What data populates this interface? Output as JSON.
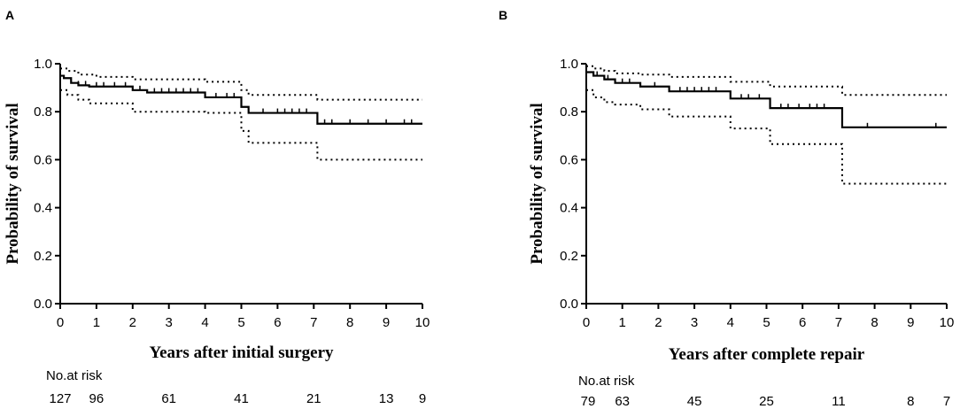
{
  "chart_data": [
    {
      "type": "line",
      "panel_label": "A",
      "title": "",
      "xlabel": "Years after initial surgery",
      "ylabel": "Probability of survival",
      "xlim": [
        0,
        10
      ],
      "ylim": [
        0,
        1.0
      ],
      "x_ticks": [
        "0",
        "1",
        "2",
        "3",
        "4",
        "5",
        "6",
        "7",
        "8",
        "9",
        "10"
      ],
      "y_ticks": [
        "0.0",
        "0.2",
        "0.4",
        "0.6",
        "0.8",
        "1.0"
      ],
      "grid": false,
      "series": [
        {
          "name": "Survival estimate",
          "style": "solid",
          "x": [
            0,
            0.1,
            0.3,
            0.5,
            0.8,
            1.3,
            2.0,
            2.4,
            4.0,
            5.0,
            5.2,
            7.1,
            10
          ],
          "y": [
            0.95,
            0.94,
            0.92,
            0.91,
            0.905,
            0.905,
            0.89,
            0.88,
            0.86,
            0.82,
            0.795,
            0.75,
            0.75
          ]
        },
        {
          "name": "Upper 95% CI",
          "style": "dotted",
          "x": [
            0,
            0.2,
            0.5,
            1.0,
            2.0,
            4.0,
            5.0,
            5.2,
            7.1,
            10
          ],
          "y": [
            0.98,
            0.97,
            0.955,
            0.945,
            0.935,
            0.925,
            0.89,
            0.87,
            0.85,
            0.85
          ]
        },
        {
          "name": "Lower 95% CI",
          "style": "dotted",
          "x": [
            0,
            0.2,
            0.5,
            0.8,
            2.0,
            4.0,
            5.0,
            5.2,
            7.1,
            10
          ],
          "y": [
            0.89,
            0.87,
            0.85,
            0.835,
            0.8,
            0.795,
            0.72,
            0.67,
            0.6,
            0.6
          ]
        }
      ],
      "censor_marks": [
        0.3,
        0.5,
        0.7,
        1.0,
        1.2,
        1.5,
        1.8,
        2.2,
        2.6,
        2.8,
        3.0,
        3.2,
        3.4,
        3.6,
        3.8,
        4.3,
        4.6,
        4.8,
        5.6,
        6.0,
        6.2,
        6.4,
        6.6,
        6.8,
        7.3,
        7.5,
        8.0,
        8.5,
        9.0,
        9.5,
        9.7
      ],
      "at_risk": {
        "label": "No.at risk",
        "times": [
          0,
          1,
          3,
          5,
          7,
          9,
          10
        ],
        "counts": [
          "127",
          "96",
          "61",
          "41",
          "21",
          "13",
          "9"
        ]
      }
    },
    {
      "type": "line",
      "panel_label": "B",
      "title": "",
      "xlabel": "Years after complete repair",
      "ylabel": "Probability of survival",
      "xlim": [
        0,
        10
      ],
      "ylim": [
        0,
        1.0
      ],
      "x_ticks": [
        "0",
        "1",
        "2",
        "3",
        "4",
        "5",
        "6",
        "7",
        "8",
        "9",
        "10"
      ],
      "y_ticks": [
        "0.0",
        "0.2",
        "0.4",
        "0.6",
        "0.8",
        "1.0"
      ],
      "grid": false,
      "series": [
        {
          "name": "Survival estimate",
          "style": "solid",
          "x": [
            0,
            0.2,
            0.5,
            0.8,
            1.5,
            2.3,
            4.0,
            5.1,
            7.1,
            10
          ],
          "y": [
            0.965,
            0.95,
            0.935,
            0.92,
            0.905,
            0.885,
            0.855,
            0.815,
            0.735,
            0.735
          ]
        },
        {
          "name": "Upper 95% CI",
          "style": "dotted",
          "x": [
            0,
            0.2,
            0.5,
            0.8,
            1.5,
            2.3,
            4.0,
            5.1,
            7.1,
            10
          ],
          "y": [
            0.99,
            0.98,
            0.97,
            0.96,
            0.955,
            0.945,
            0.925,
            0.905,
            0.87,
            0.87
          ]
        },
        {
          "name": "Lower 95% CI",
          "style": "dotted",
          "x": [
            0,
            0.2,
            0.5,
            0.8,
            1.5,
            2.3,
            4.0,
            5.1,
            7.1,
            10
          ],
          "y": [
            0.89,
            0.86,
            0.84,
            0.83,
            0.81,
            0.78,
            0.73,
            0.665,
            0.5,
            0.5
          ]
        }
      ],
      "censor_marks": [
        0.3,
        0.6,
        1.0,
        1.2,
        1.9,
        2.6,
        2.8,
        3.0,
        3.2,
        3.4,
        3.6,
        4.3,
        4.5,
        4.8,
        5.4,
        5.6,
        5.9,
        6.2,
        6.4,
        6.6,
        7.8,
        9.7
      ],
      "at_risk": {
        "label": "No.at risk",
        "times": [
          0,
          1,
          3,
          5,
          7,
          9,
          10
        ],
        "counts": [
          "79",
          "63",
          "45",
          "25",
          "11",
          "8",
          "7"
        ]
      }
    }
  ]
}
